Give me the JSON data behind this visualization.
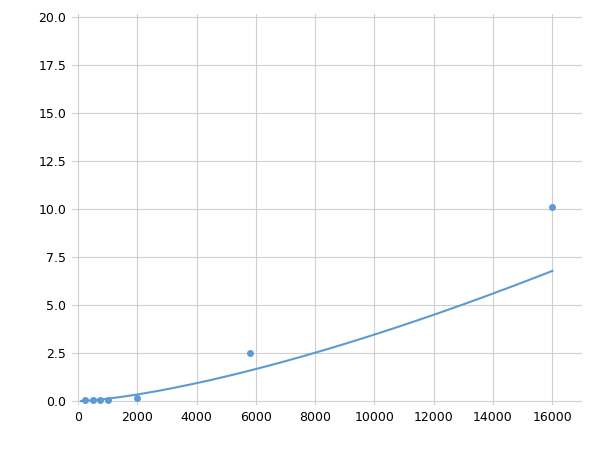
{
  "x": [
    250,
    500,
    750,
    1000,
    2000,
    5800,
    16000
  ],
  "y": [
    0.04,
    0.08,
    0.05,
    0.06,
    0.15,
    2.5,
    10.1
  ],
  "line_color": "#5b9bd5",
  "marker_color": "#5b9bd5",
  "marker_size": 4,
  "xlim": [
    -200,
    17000
  ],
  "ylim": [
    -0.2,
    20.2
  ],
  "xticks": [
    0,
    2000,
    4000,
    6000,
    8000,
    10000,
    12000,
    14000,
    16000
  ],
  "yticks": [
    0.0,
    2.5,
    5.0,
    7.5,
    10.0,
    12.5,
    15.0,
    17.5,
    20.0
  ],
  "grid": true,
  "background_color": "#ffffff",
  "figsize": [
    6.0,
    4.5
  ],
  "dpi": 100
}
